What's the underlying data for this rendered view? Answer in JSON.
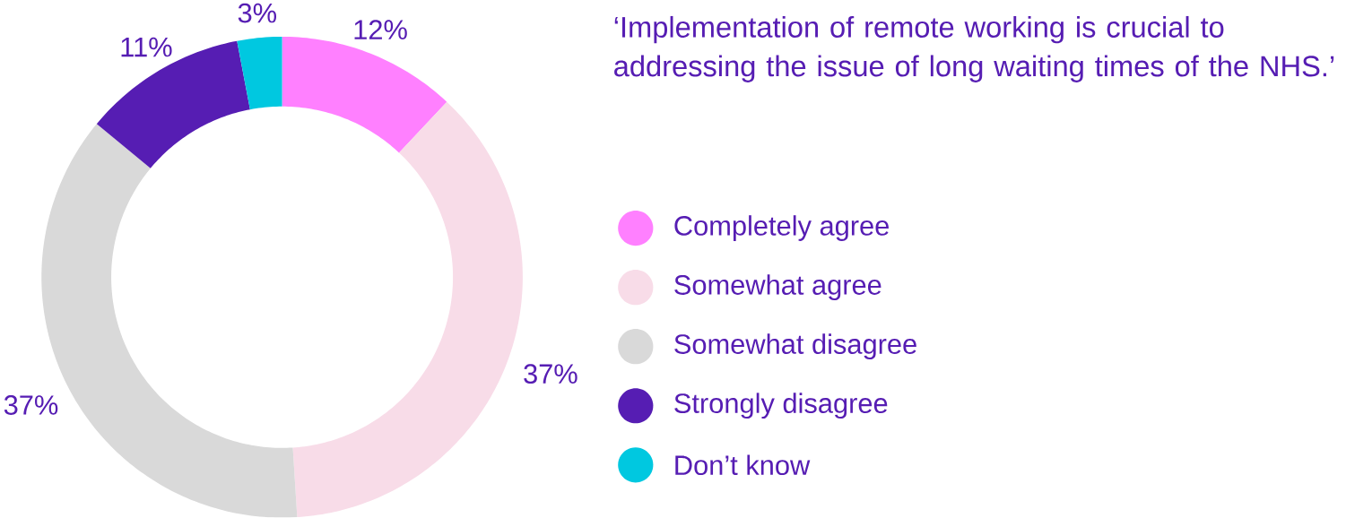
{
  "chart_data": {
    "type": "donut",
    "title": "‘Implementation of remote working is crucial to addressing the issue of long waiting times of the NHS.’",
    "categories": [
      "Completely agree",
      "Somewhat agree",
      "Somewhat disagree",
      "Strongly disagree",
      "Don’t know"
    ],
    "values": [
      12,
      37,
      37,
      11,
      3
    ],
    "colors": [
      "#ff80ff",
      "#f8dce8",
      "#d9d9d9",
      "#561db3",
      "#00c8e0"
    ],
    "value_labels": [
      "12%",
      "37%",
      "37%",
      "11%",
      "3%"
    ],
    "legend": "right"
  }
}
